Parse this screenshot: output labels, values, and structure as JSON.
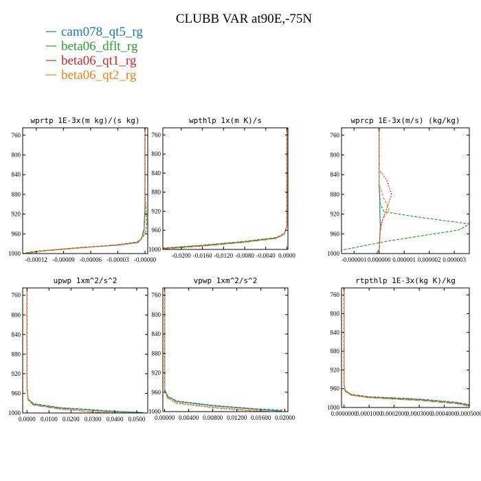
{
  "figure": {
    "title": "CLUBB VAR at90E,-75N",
    "legend": [
      {
        "name": "cam078_qt5_rg",
        "color": "#1f77b4"
      },
      {
        "name": "beta06_dflt_rg",
        "color": "#2ca02c"
      },
      {
        "name": "beta06_qt1_rg",
        "color": "#d62728"
      },
      {
        "name": "beta06_qt2_rg",
        "color": "#ff7f0e"
      }
    ]
  },
  "chart_data": [
    {
      "type": "line",
      "title": "wprtp  1E-3x(m kg)/(s kg)",
      "ylim": [
        1000,
        745
      ],
      "xlim": [
        -0.000135,
        3e-06
      ],
      "yticks": [
        "760",
        "800",
        "840",
        "880",
        "920",
        "960",
        "1000"
      ],
      "yticks_val": [
        760,
        800,
        840,
        880,
        920,
        960,
        1000
      ],
      "xticks": [
        "-0.00012",
        "-0.00009",
        "-0.00006",
        "-0.00003",
        "-0.00000"
      ],
      "xticks_val": [
        -0.00012,
        -9e-05,
        -6e-05,
        -3e-05,
        0
      ],
      "series": [
        {
          "name": "cam078_qt5_rg",
          "points": [
            [
              0,
              745
            ],
            [
              0,
              900
            ],
            [
              -1e-06,
              950
            ],
            [
              -4e-06,
              970
            ],
            [
              -8e-06,
              978
            ],
            [
              -3e-05,
              983
            ],
            [
              -7e-05,
              988
            ],
            [
              -0.00011,
              994
            ],
            [
              -0.000133,
              1000
            ]
          ]
        },
        {
          "name": "beta06_dflt_rg",
          "points": [
            [
              0,
              745
            ],
            [
              0,
              880
            ],
            [
              2e-06,
              935
            ],
            [
              1e-06,
              955
            ],
            [
              -3e-06,
              968
            ],
            [
              -8e-06,
              976
            ],
            [
              -3e-05,
              982
            ],
            [
              -8e-05,
              989
            ],
            [
              -0.000125,
              996
            ],
            [
              -0.000135,
              1000
            ]
          ]
        },
        {
          "name": "beta06_qt1_rg",
          "points": [
            [
              0,
              745
            ],
            [
              0,
              930
            ],
            [
              -1e-06,
              955
            ],
            [
              -4e-06,
              970
            ],
            [
              -1e-05,
              978
            ],
            [
              -3.5e-05,
              983
            ],
            [
              -8e-05,
              990
            ],
            [
              -0.00012,
              996
            ],
            [
              -0.000132,
              1000
            ]
          ]
        },
        {
          "name": "beta06_qt2_rg",
          "points": [
            [
              0,
              745
            ],
            [
              0,
              930
            ],
            [
              -1e-06,
              955
            ],
            [
              -4e-06,
              970
            ],
            [
              -1e-05,
              978
            ],
            [
              -3.5e-05,
              983
            ],
            [
              -8e-05,
              990
            ],
            [
              -0.00012,
              996
            ],
            [
              -0.000132,
              1000
            ]
          ]
        }
      ]
    },
    {
      "type": "line",
      "title": "wpthlp  1x(m K)/s",
      "ylim": [
        1000,
        745
      ],
      "xlim": [
        -0.0235,
        0.0002
      ],
      "yticks": [
        "760",
        "800",
        "840",
        "880",
        "920",
        "960",
        "1000"
      ],
      "yticks_val": [
        760,
        800,
        840,
        880,
        920,
        960,
        1000
      ],
      "xticks": [
        "-0.0200",
        "-0.0160",
        "-0.0120",
        "-0.0080",
        "-0.0040",
        "0.0000"
      ],
      "xticks_val": [
        -0.02,
        -0.016,
        -0.012,
        -0.008,
        -0.004,
        0
      ],
      "series": [
        {
          "name": "cam078_qt5_rg",
          "points": [
            [
              0,
              745
            ],
            [
              0,
              950
            ],
            [
              -0.0005,
              968
            ],
            [
              -0.002,
              976
            ],
            [
              -0.008,
              984
            ],
            [
              -0.016,
              992
            ],
            [
              -0.0235,
              998
            ]
          ]
        },
        {
          "name": "beta06_dflt_rg",
          "points": [
            [
              0,
              745
            ],
            [
              0,
              950
            ],
            [
              -0.0004,
              966
            ],
            [
              -0.002,
              975
            ],
            [
              -0.008,
              983
            ],
            [
              -0.016,
              991
            ],
            [
              -0.0235,
              997
            ]
          ]
        },
        {
          "name": "beta06_qt1_rg",
          "points": [
            [
              0,
              745
            ],
            [
              0,
              950
            ],
            [
              -0.0005,
              968
            ],
            [
              -0.002,
              977
            ],
            [
              -0.008,
              985
            ],
            [
              -0.016,
              993
            ],
            [
              -0.0235,
              999
            ]
          ]
        },
        {
          "name": "beta06_qt2_rg",
          "points": [
            [
              0,
              745
            ],
            [
              0,
              950
            ],
            [
              -0.0005,
              968
            ],
            [
              -0.002,
              977
            ],
            [
              -0.008,
              985
            ],
            [
              -0.016,
              993
            ],
            [
              -0.0235,
              999
            ]
          ]
        }
      ]
    },
    {
      "type": "line",
      "title": "wprcp  1E-3x(m/s) (kg/kg)",
      "ylim": [
        1000,
        745
      ],
      "xlim": [
        -1.5e-06,
        3.6e-06
      ],
      "yticks": [
        "760",
        "800",
        "840",
        "880",
        "920",
        "960",
        "1000"
      ],
      "yticks_val": [
        760,
        800,
        840,
        880,
        920,
        960,
        1000
      ],
      "xticks": [
        "-0.000001",
        "0.000000",
        "0.000001",
        "0.000002",
        "0.000003"
      ],
      "xticks_val": [
        -1e-06,
        0,
        1e-06,
        2e-06,
        3e-06
      ],
      "series": [
        {
          "name": "cam078_qt5_rg",
          "points": [
            [
              0,
              745
            ],
            [
              0,
              860
            ],
            [
              3e-08,
              890
            ],
            [
              3e-08,
              920
            ],
            [
              5e-08,
              945
            ],
            [
              2e-08,
              975
            ],
            [
              1e-08,
              990
            ],
            [
              -1e-07,
              1000
            ]
          ]
        },
        {
          "name": "beta06_dflt_rg",
          "points": [
            [
              0,
              745
            ],
            [
              0,
              860
            ],
            [
              5e-08,
              900
            ],
            [
              2e-07,
              915
            ],
            [
              1.4e-06,
              925
            ],
            [
              3.6e-06,
              940
            ],
            [
              3.2e-06,
              952
            ],
            [
              3e-07,
              975
            ],
            [
              -1.5e-06,
              993
            ]
          ]
        },
        {
          "name": "beta06_qt1_rg",
          "points": [
            [
              0,
              745
            ],
            [
              0,
              830
            ],
            [
              3e-07,
              850
            ],
            [
              5e-07,
              880
            ],
            [
              3e-07,
              910
            ],
            [
              1e-07,
              935
            ],
            [
              3e-08,
              960
            ],
            [
              1e-08,
              985
            ],
            [
              0,
              1000
            ]
          ]
        },
        {
          "name": "beta06_qt2_rg",
          "points": [
            [
              0,
              745
            ],
            [
              0,
              860
            ],
            [
              2e-07,
              890
            ],
            [
              4e-07,
              910
            ],
            [
              1.5e-07,
              930
            ],
            [
              5e-08,
              955
            ],
            [
              2e-08,
              980
            ],
            [
              0,
              1000
            ]
          ]
        }
      ]
    },
    {
      "type": "line",
      "title": "upwp  1xm^2/s^2",
      "ylim": [
        1000,
        745
      ],
      "xlim": [
        -0.002,
        0.055
      ],
      "yticks": [
        "760",
        "800",
        "840",
        "880",
        "920",
        "960",
        "1000"
      ],
      "yticks_val": [
        760,
        800,
        840,
        880,
        920,
        960,
        1000
      ],
      "xticks": [
        "0.0000",
        "0.0100",
        "0.0200",
        "0.0300",
        "0.0400",
        "0.0500"
      ],
      "xticks_val": [
        0,
        0.01,
        0.02,
        0.03,
        0.04,
        0.05
      ],
      "series": [
        {
          "name": "cam078_qt5_rg",
          "points": [
            [
              0,
              745
            ],
            [
              0,
              950
            ],
            [
              0.0005,
              972
            ],
            [
              0.003,
              982
            ],
            [
              0.015,
              990
            ],
            [
              0.035,
              996
            ],
            [
              0.053,
              999
            ]
          ]
        },
        {
          "name": "beta06_dflt_rg",
          "points": [
            [
              0,
              745
            ],
            [
              0,
              950
            ],
            [
              0.0005,
              972
            ],
            [
              0.003,
              981
            ],
            [
              0.015,
              989
            ],
            [
              0.035,
              995
            ],
            [
              0.051,
              999
            ]
          ]
        },
        {
          "name": "beta06_qt1_rg",
          "points": [
            [
              0,
              745
            ],
            [
              0,
              950
            ],
            [
              0.0005,
              974
            ],
            [
              0.003,
              984
            ],
            [
              0.015,
              992
            ],
            [
              0.03,
              998
            ],
            [
              0.048,
              1000
            ]
          ]
        },
        {
          "name": "beta06_qt2_rg",
          "points": [
            [
              0,
              745
            ],
            [
              0,
              950
            ],
            [
              0.0005,
              974
            ],
            [
              0.003,
              984
            ],
            [
              0.015,
              992
            ],
            [
              0.03,
              998
            ],
            [
              0.048,
              1000
            ]
          ]
        }
      ]
    },
    {
      "type": "line",
      "title": "vpwp  1xm^2/s^2",
      "ylim": [
        1000,
        745
      ],
      "xlim": [
        -0.0003,
        0.0205
      ],
      "yticks": [
        "760",
        "800",
        "840",
        "880",
        "920",
        "960",
        "1000"
      ],
      "yticks_val": [
        760,
        800,
        840,
        880,
        920,
        960,
        1000
      ],
      "xticks": [
        "0.00000",
        "0.00400",
        "0.00800",
        "0.01200",
        "0.01600",
        "0.02000"
      ],
      "xticks_val": [
        0,
        0.004,
        0.008,
        0.012,
        0.016,
        0.02
      ],
      "series": [
        {
          "name": "cam078_qt5_rg",
          "points": [
            [
              0,
              745
            ],
            [
              0,
              955
            ],
            [
              0.0006,
              970
            ],
            [
              0.002,
              979
            ],
            [
              0.008,
              988
            ],
            [
              0.015,
              995
            ],
            [
              0.0195,
              999
            ]
          ]
        },
        {
          "name": "beta06_dflt_rg",
          "points": [
            [
              0,
              745
            ],
            [
              0,
              955
            ],
            [
              0.0005,
              968
            ],
            [
              0.002,
              978
            ],
            [
              0.008,
              987
            ],
            [
              0.015,
              994
            ],
            [
              0.02,
              997
            ]
          ]
        },
        {
          "name": "beta06_qt1_rg",
          "points": [
            [
              0,
              745
            ],
            [
              0,
              958
            ],
            [
              0.0005,
              972
            ],
            [
              0.002,
              982
            ],
            [
              0.008,
              991
            ],
            [
              0.014,
              997
            ],
            [
              0.0175,
              1000
            ]
          ]
        },
        {
          "name": "beta06_qt2_rg",
          "points": [
            [
              0,
              745
            ],
            [
              0,
              958
            ],
            [
              0.0005,
              972
            ],
            [
              0.002,
              983
            ],
            [
              0.008,
              992
            ],
            [
              0.014,
              998
            ],
            [
              0.0175,
              1000
            ]
          ]
        }
      ]
    },
    {
      "type": "line",
      "title": "rtpthlp  1E-3x(kg K)/kg",
      "ylim": [
        1000,
        745
      ],
      "xlim": [
        -1e-05,
        0.0005
      ],
      "yticks": [
        "760",
        "800",
        "840",
        "880",
        "920",
        "960",
        "1000"
      ],
      "yticks_val": [
        760,
        800,
        840,
        880,
        920,
        960,
        1000
      ],
      "xticks": [
        "0.0000000",
        "0.0001000",
        "0.0002000",
        "0.0003000",
        "0.0004000",
        "0.0005000"
      ],
      "xticks_val": [
        0,
        0.0001,
        0.0002,
        0.0003,
        0.0004,
        0.0005
      ],
      "series": [
        {
          "name": "cam078_qt5_rg",
          "points": [
            [
              0,
              745
            ],
            [
              0,
              950
            ],
            [
              5e-06,
              965
            ],
            [
              3e-05,
              973
            ],
            [
              0.0001,
              978
            ],
            [
              0.0003,
              983
            ],
            [
              0.00045,
              990
            ],
            [
              0.0005,
              995
            ]
          ]
        },
        {
          "name": "beta06_dflt_rg",
          "points": [
            [
              0,
              745
            ],
            [
              0,
              950
            ],
            [
              5e-06,
              964
            ],
            [
              3e-05,
              972
            ],
            [
              0.0001,
              977
            ],
            [
              0.0003,
              982
            ],
            [
              0.00045,
              989
            ],
            [
              0.0005,
              994
            ]
          ]
        },
        {
          "name": "beta06_qt1_rg",
          "points": [
            [
              0,
              745
            ],
            [
              0,
              950
            ],
            [
              5e-06,
              966
            ],
            [
              3e-05,
              974
            ],
            [
              0.0001,
              979
            ],
            [
              0.0003,
              985
            ],
            [
              0.00045,
              992
            ],
            [
              0.0005,
              997
            ]
          ]
        },
        {
          "name": "beta06_qt2_rg",
          "points": [
            [
              0,
              745
            ],
            [
              0,
              950
            ],
            [
              5e-06,
              966
            ],
            [
              3e-05,
              974
            ],
            [
              0.0001,
              979
            ],
            [
              0.0003,
              985
            ],
            [
              0.00045,
              992
            ],
            [
              0.0005,
              997
            ]
          ]
        }
      ]
    }
  ]
}
